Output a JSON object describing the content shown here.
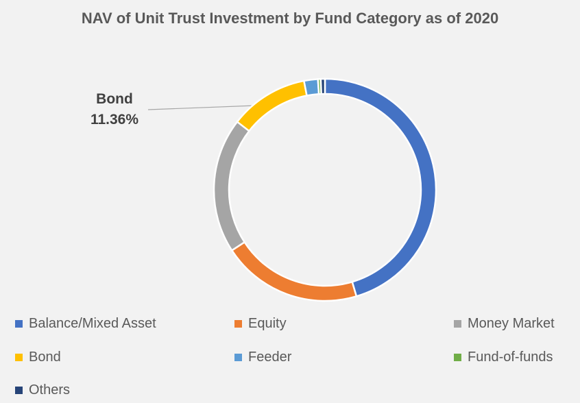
{
  "chart_data": {
    "type": "pie",
    "subtype": "doughnut",
    "title": "NAV of Unit Trust Investment by Fund Category as of 2020",
    "categories": [
      "Balance/Mixed Asset",
      "Equity",
      "Money Market",
      "Bond",
      "Feeder",
      "Fund-of-funds",
      "Others"
    ],
    "values": [
      45.0,
      20.2,
      19.5,
      11.36,
      2.0,
      0.4,
      0.6
    ],
    "colors": [
      "#4472c4",
      "#ed7d31",
      "#a5a5a5",
      "#ffc000",
      "#5b9bd5",
      "#70ad47",
      "#264478"
    ],
    "data_labels": [
      {
        "category": "Bond",
        "label": "Bond",
        "value_text": "11.36%"
      }
    ],
    "legend_position": "bottom"
  }
}
